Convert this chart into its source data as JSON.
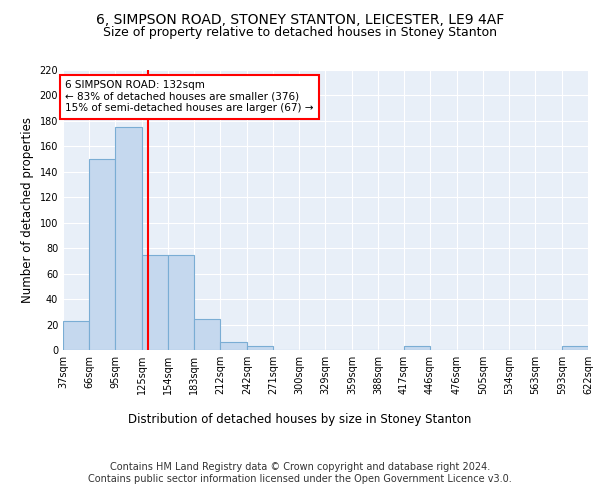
{
  "title1": "6, SIMPSON ROAD, STONEY STANTON, LEICESTER, LE9 4AF",
  "title2": "Size of property relative to detached houses in Stoney Stanton",
  "xlabel": "Distribution of detached houses by size in Stoney Stanton",
  "ylabel": "Number of detached properties",
  "bar_color": "#c5d8ee",
  "bar_edge_color": "#7aadd4",
  "vline_x": 132,
  "vline_color": "red",
  "annotation_text": "6 SIMPSON ROAD: 132sqm\n← 83% of detached houses are smaller (376)\n15% of semi-detached houses are larger (67) →",
  "annotation_box_color": "white",
  "annotation_box_edge": "red",
  "bin_edges": [
    37,
    66,
    95,
    125,
    154,
    183,
    212,
    242,
    271,
    300,
    329,
    359,
    388,
    417,
    446,
    476,
    505,
    534,
    563,
    593,
    622
  ],
  "bar_heights": [
    23,
    150,
    175,
    75,
    75,
    24,
    6,
    3,
    0,
    0,
    0,
    0,
    0,
    3,
    0,
    0,
    0,
    0,
    0,
    3
  ],
  "ylim": [
    0,
    220
  ],
  "yticks": [
    0,
    20,
    40,
    60,
    80,
    100,
    120,
    140,
    160,
    180,
    200,
    220
  ],
  "background_color": "#e8eff8",
  "footer_text": "Contains HM Land Registry data © Crown copyright and database right 2024.\nContains public sector information licensed under the Open Government Licence v3.0.",
  "title_fontsize": 10,
  "subtitle_fontsize": 9,
  "axis_label_fontsize": 8.5,
  "tick_fontsize": 7,
  "footer_fontsize": 7,
  "annotation_fontsize": 7.5
}
